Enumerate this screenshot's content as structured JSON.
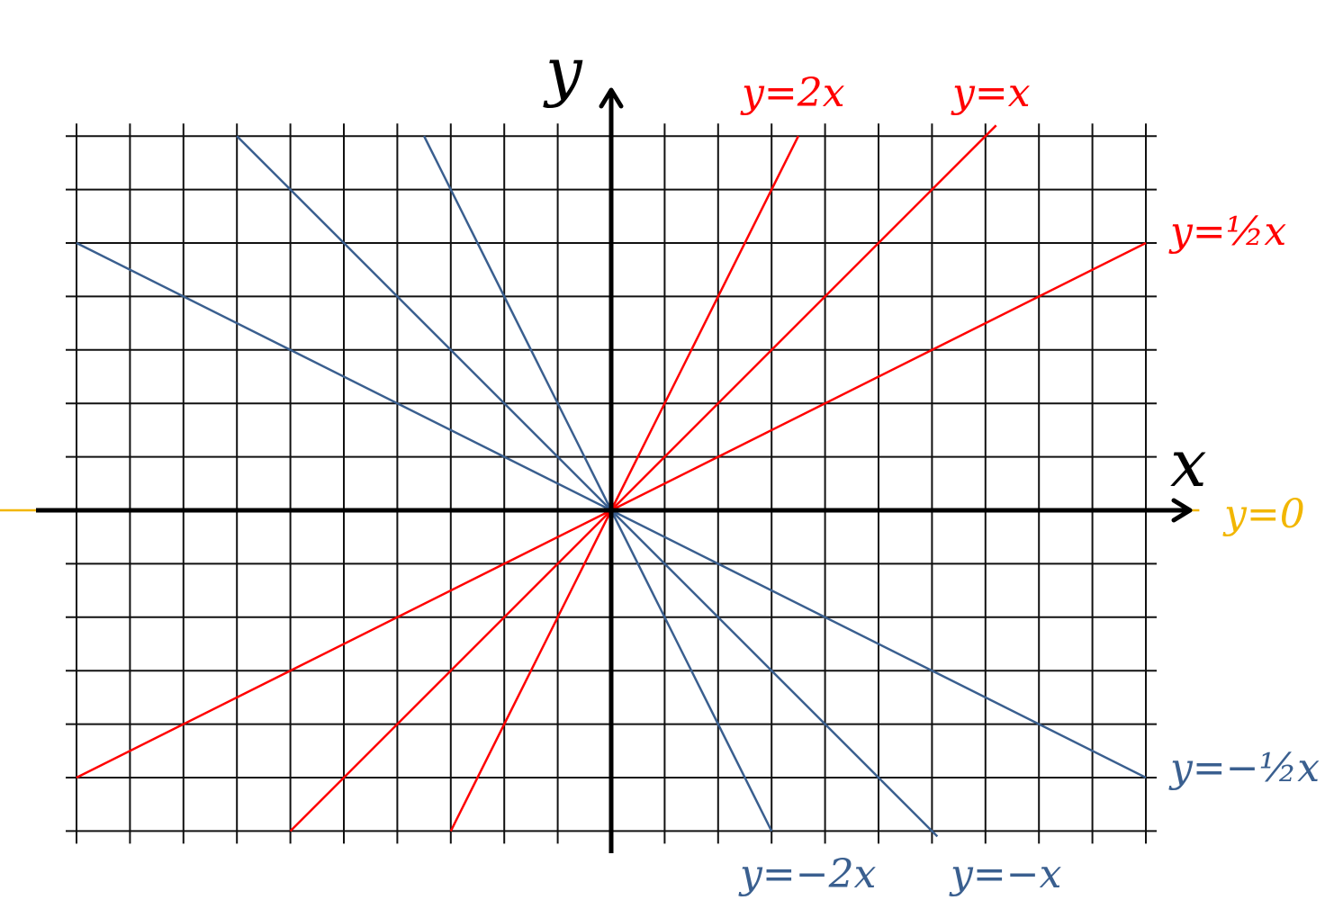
{
  "chart_data": {
    "type": "line",
    "title": "",
    "xlabel": "x",
    "ylabel": "y",
    "xlim": [
      -10,
      10
    ],
    "ylim": [
      -6,
      7
    ],
    "grid": true,
    "colors": {
      "positive": "#ff0000",
      "negative": "#3a5f8f",
      "zero": "#f2b600",
      "axis": "#000000",
      "grid": "#111111"
    },
    "series": [
      {
        "name": "y=2x",
        "slope": 2,
        "color": "#ff0000",
        "x": [
          -3,
          3.5
        ],
        "y": [
          -6,
          7
        ]
      },
      {
        "name": "y=x",
        "slope": 1,
        "color": "#ff0000",
        "x": [
          -6,
          7.2
        ],
        "y": [
          -6,
          7.2
        ]
      },
      {
        "name": "y=½x",
        "slope": 0.5,
        "color": "#ff0000",
        "x": [
          -10,
          10
        ],
        "y": [
          -5,
          5
        ]
      },
      {
        "name": "y=0",
        "slope": 0,
        "color": "#f2b600",
        "x": [
          -11.5,
          11
        ],
        "y": [
          0,
          0
        ]
      },
      {
        "name": "y=−½x",
        "slope": -0.5,
        "color": "#3a5f8f",
        "x": [
          -10,
          10
        ],
        "y": [
          5,
          -5
        ]
      },
      {
        "name": "y=−x",
        "slope": -1,
        "color": "#3a5f8f",
        "x": [
          -7,
          6.1
        ],
        "y": [
          7,
          -6.1
        ]
      },
      {
        "name": "y=−2x",
        "slope": -2,
        "color": "#3a5f8f",
        "x": [
          -3.5,
          3
        ],
        "y": [
          7,
          -6
        ]
      }
    ]
  }
}
